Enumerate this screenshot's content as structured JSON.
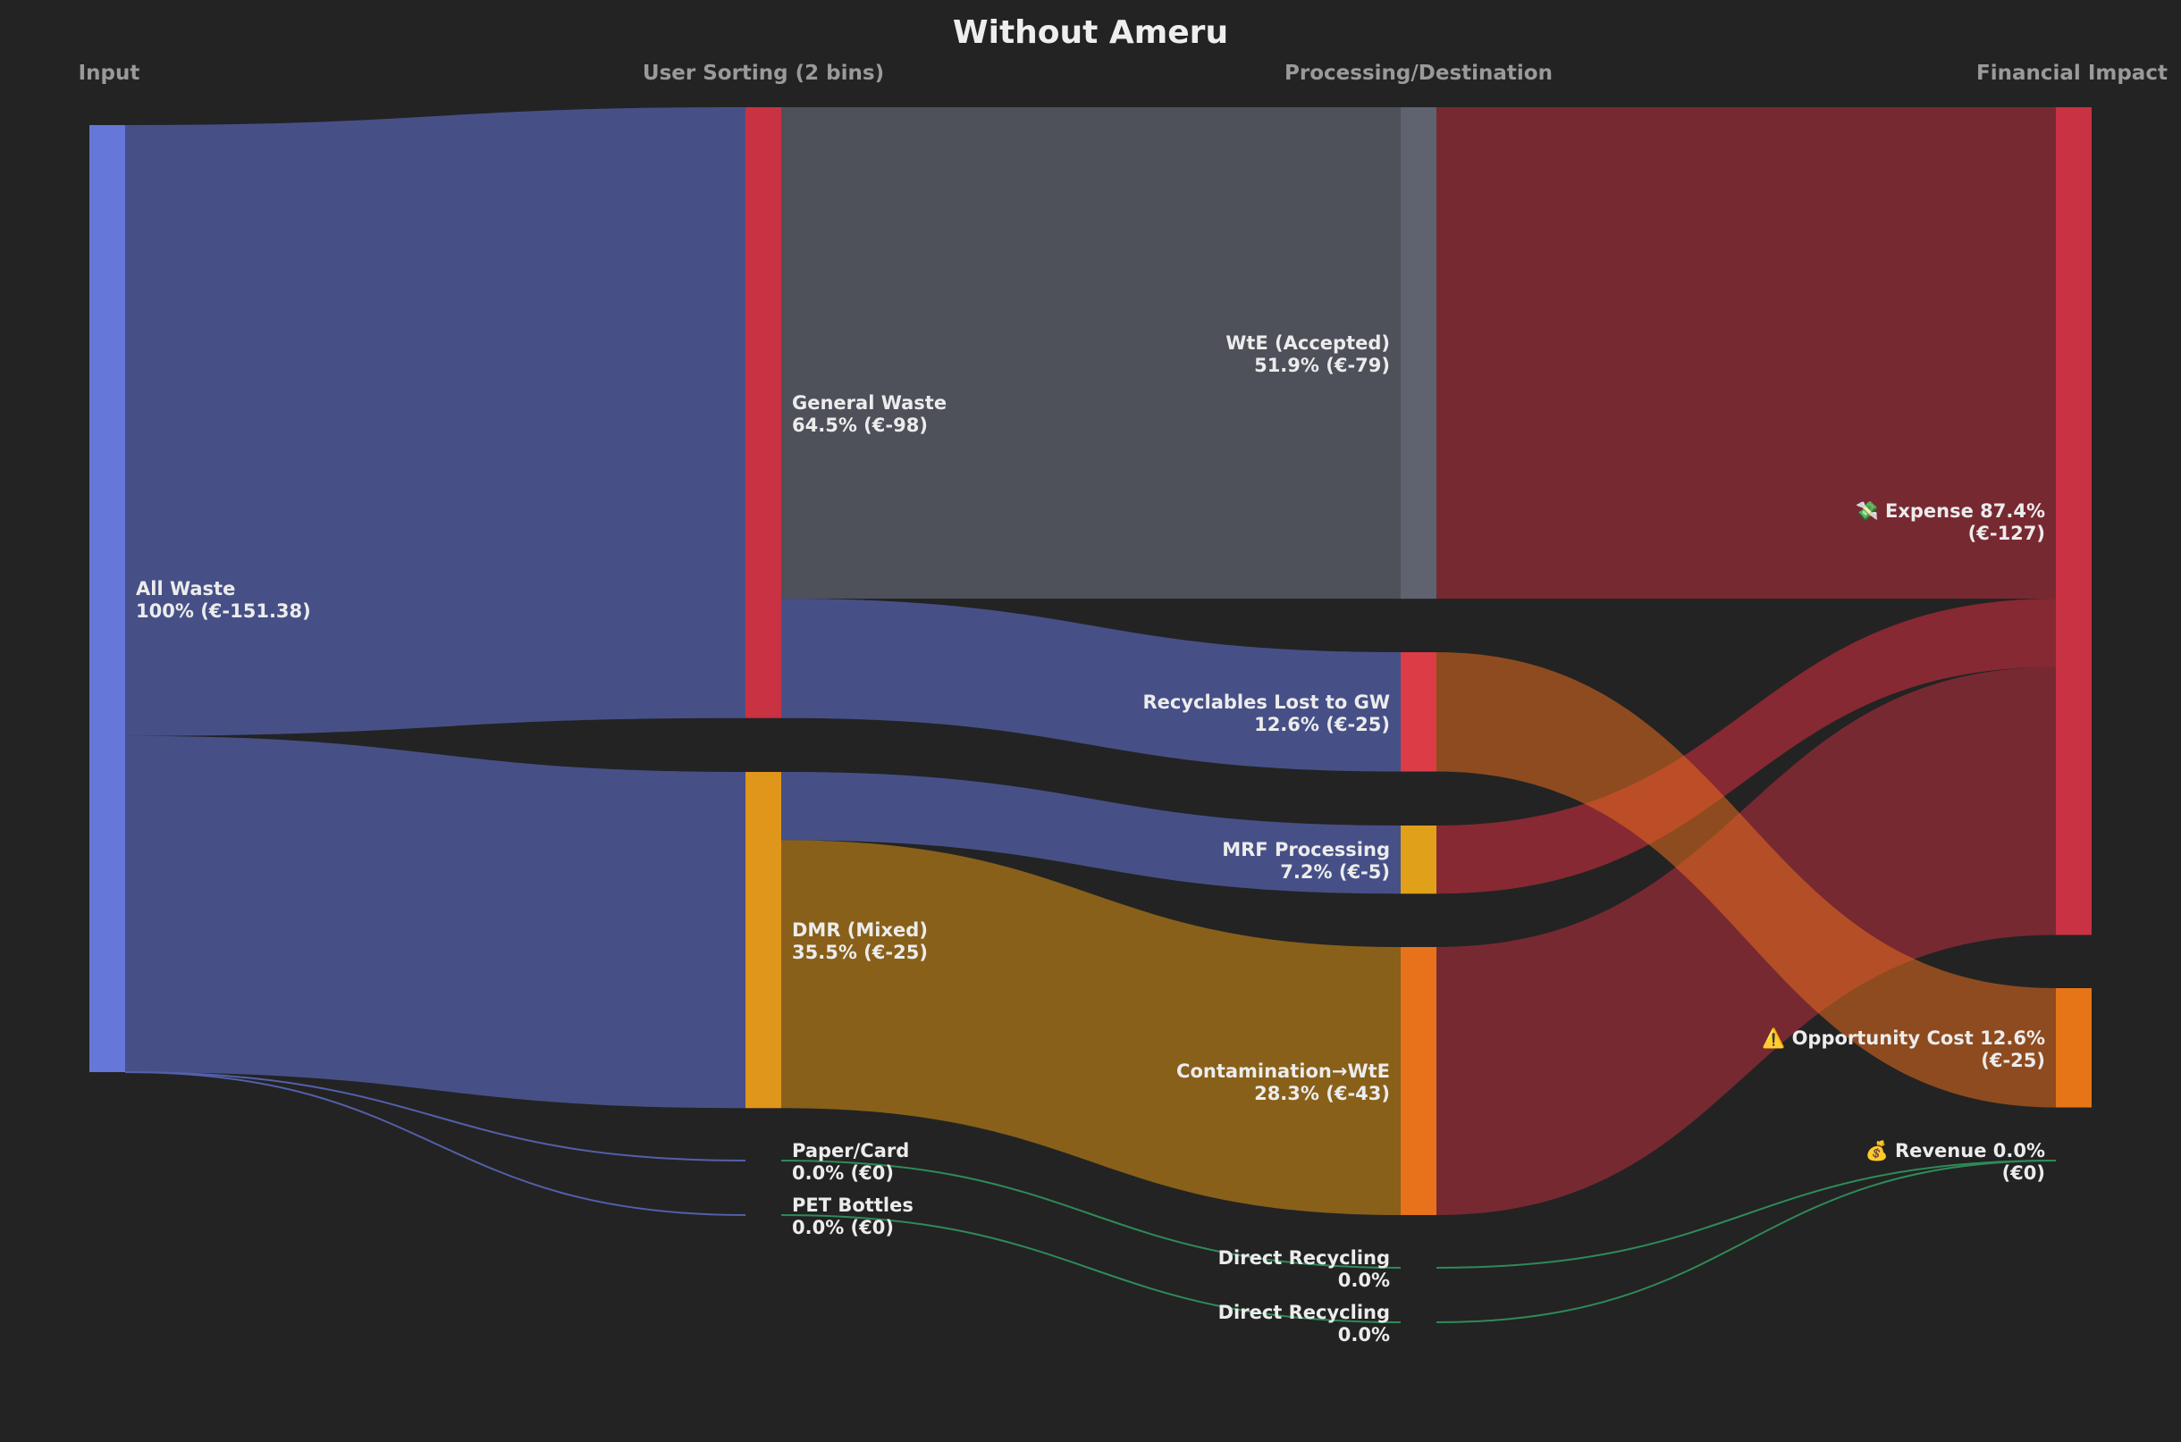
{
  "chart_data": {
    "type": "sankey",
    "title": "Without Ameru",
    "columns": [
      "Input",
      "User Sorting (2 bins)",
      "Processing/Destination",
      "Financial Impact"
    ],
    "nodes": [
      {
        "label": "All Waste",
        "value": "100% (€-151.38)",
        "color": "#6577d8"
      },
      {
        "label": "General Waste",
        "value": "64.5% (€-98)",
        "color": "#c93242"
      },
      {
        "label": "DMR (Mixed)",
        "value": "35.5% (€-25)",
        "color": "#e0961a"
      },
      {
        "label": "Paper/Card",
        "value": "0.0% (€0)",
        "color": "#2e8b57"
      },
      {
        "label": "PET Bottles",
        "value": "0.0% (€0)",
        "color": "#2e8b57"
      },
      {
        "label": "WtE (Accepted)",
        "value": "51.9% (€-79)",
        "color": "#5f6370"
      },
      {
        "label": "Recyclables Lost to GW",
        "value": "12.6% (€-25)",
        "color": "#dc3c46"
      },
      {
        "label": "MRF Processing",
        "value": "7.2% (€-5)",
        "color": "#e0a01a"
      },
      {
        "label": "Contamination→WtE",
        "value": "28.3% (€-43)",
        "color": "#e8721c"
      },
      {
        "label": "Direct Recycling",
        "value": "0.0%",
        "color": "#2e8b57"
      },
      {
        "label": "Direct Recycling",
        "value": "0.0%",
        "color": "#2e8b57"
      },
      {
        "label": "💸 Expense 87.4%",
        "value": "(€-127)",
        "color": "#c93242"
      },
      {
        "label": "⚠️ Opportunity Cost 12.6%",
        "value": "(€-25)",
        "color": "#e67518"
      },
      {
        "label": "💰 Revenue 0.0%",
        "value": "(€0)",
        "color": "#2e8b57"
      }
    ],
    "links": [
      {
        "source": 0,
        "target": 1,
        "value": 64.5,
        "color": "rgba(83,96,170,0.75)"
      },
      {
        "source": 0,
        "target": 2,
        "value": 35.5,
        "color": "rgba(83,96,170,0.75)"
      },
      {
        "source": 0,
        "target": 3,
        "value": 0,
        "color": "#5360aa"
      },
      {
        "source": 0,
        "target": 4,
        "value": 0,
        "color": "#5360aa"
      },
      {
        "source": 1,
        "target": 5,
        "value": 51.9,
        "color": "rgba(95,99,112,0.72)"
      },
      {
        "source": 1,
        "target": 6,
        "value": 12.6,
        "color": "rgba(83,96,170,0.75)"
      },
      {
        "source": 2,
        "target": 7,
        "value": 7.2,
        "color": "rgba(83,96,170,0.75)"
      },
      {
        "source": 2,
        "target": 8,
        "value": 28.3,
        "color": "rgba(176,120,24,0.72)"
      },
      {
        "source": 3,
        "target": 9,
        "value": 0,
        "color": "#2e8b57"
      },
      {
        "source": 4,
        "target": 10,
        "value": 0,
        "color": "#2e8b57"
      },
      {
        "source": 5,
        "target": 11,
        "value": 51.9,
        "color": "rgba(175,45,60,0.6)"
      },
      {
        "source": 7,
        "target": 11,
        "value": 7.2,
        "color": "rgba(200,45,60,0.6)"
      },
      {
        "source": 8,
        "target": 11,
        "value": 28.3,
        "color": "rgba(175,45,60,0.6)"
      },
      {
        "source": 6,
        "target": 12,
        "value": 12.6,
        "color": "rgba(232,110,30,0.55)"
      },
      {
        "source": 9,
        "target": 13,
        "value": 0,
        "color": "#2e8b57"
      },
      {
        "source": 10,
        "target": 13,
        "value": 0,
        "color": "#2e8b57"
      }
    ]
  }
}
